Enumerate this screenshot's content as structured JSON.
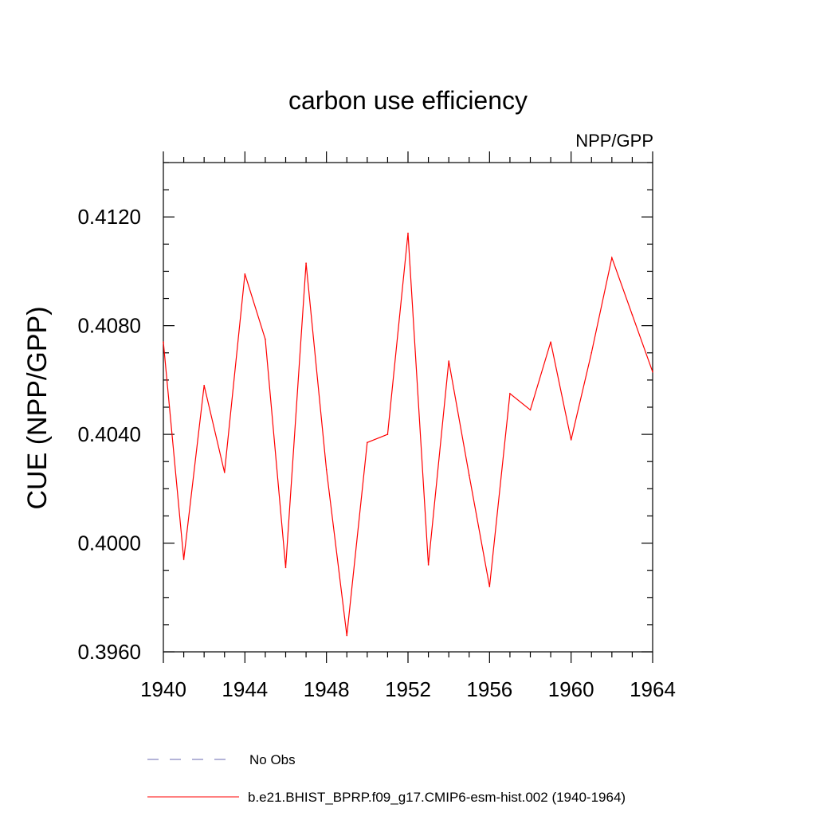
{
  "chart_data": {
    "type": "line",
    "title": "carbon use efficiency",
    "subtitle": "NPP/GPP",
    "xlabel": "",
    "ylabel": "CUE  (NPP/GPP)",
    "xlim": [
      1940,
      1964
    ],
    "ylim": [
      0.396,
      0.414
    ],
    "x_ticks": [
      1940,
      1944,
      1948,
      1952,
      1956,
      1960,
      1964
    ],
    "x_tick_labels": [
      "1940",
      "1944",
      "1948",
      "1952",
      "1956",
      "1960",
      "1964"
    ],
    "y_ticks": [
      0.396,
      0.4,
      0.404,
      0.408,
      0.412
    ],
    "y_tick_labels": [
      "0.3960",
      "0.4000",
      "0.4040",
      "0.4080",
      "0.4120"
    ],
    "grid": false,
    "legend_position": "bottom",
    "series": [
      {
        "name": "b.e21.BHIST_BPRP.f09_g17.CMIP6-esm-hist.002 (1940-1964)",
        "color": "#ff0000",
        "style": "solid",
        "x": [
          1940,
          1941,
          1942,
          1943,
          1944,
          1945,
          1946,
          1947,
          1948,
          1949,
          1950,
          1951,
          1952,
          1953,
          1954,
          1955,
          1956,
          1957,
          1958,
          1959,
          1960,
          1961,
          1962,
          1963,
          1964
        ],
        "values": [
          0.4074,
          0.3994,
          0.4058,
          0.4026,
          0.4099,
          0.4075,
          0.3991,
          0.4103,
          0.4027,
          0.3966,
          0.4037,
          0.404,
          0.4114,
          0.3992,
          0.4067,
          0.4025,
          0.3984,
          0.4055,
          0.4049,
          0.4074,
          0.4038,
          0.407,
          0.4105,
          0.4084,
          0.4063
        ]
      }
    ],
    "legend": [
      {
        "label": "No Obs",
        "color": "#6a6ab0",
        "style": "dashed"
      },
      {
        "label": "b.e21.BHIST_BPRP.f09_g17.CMIP6-esm-hist.002 (1940-1964)",
        "color": "#ff0000",
        "style": "solid"
      }
    ]
  }
}
